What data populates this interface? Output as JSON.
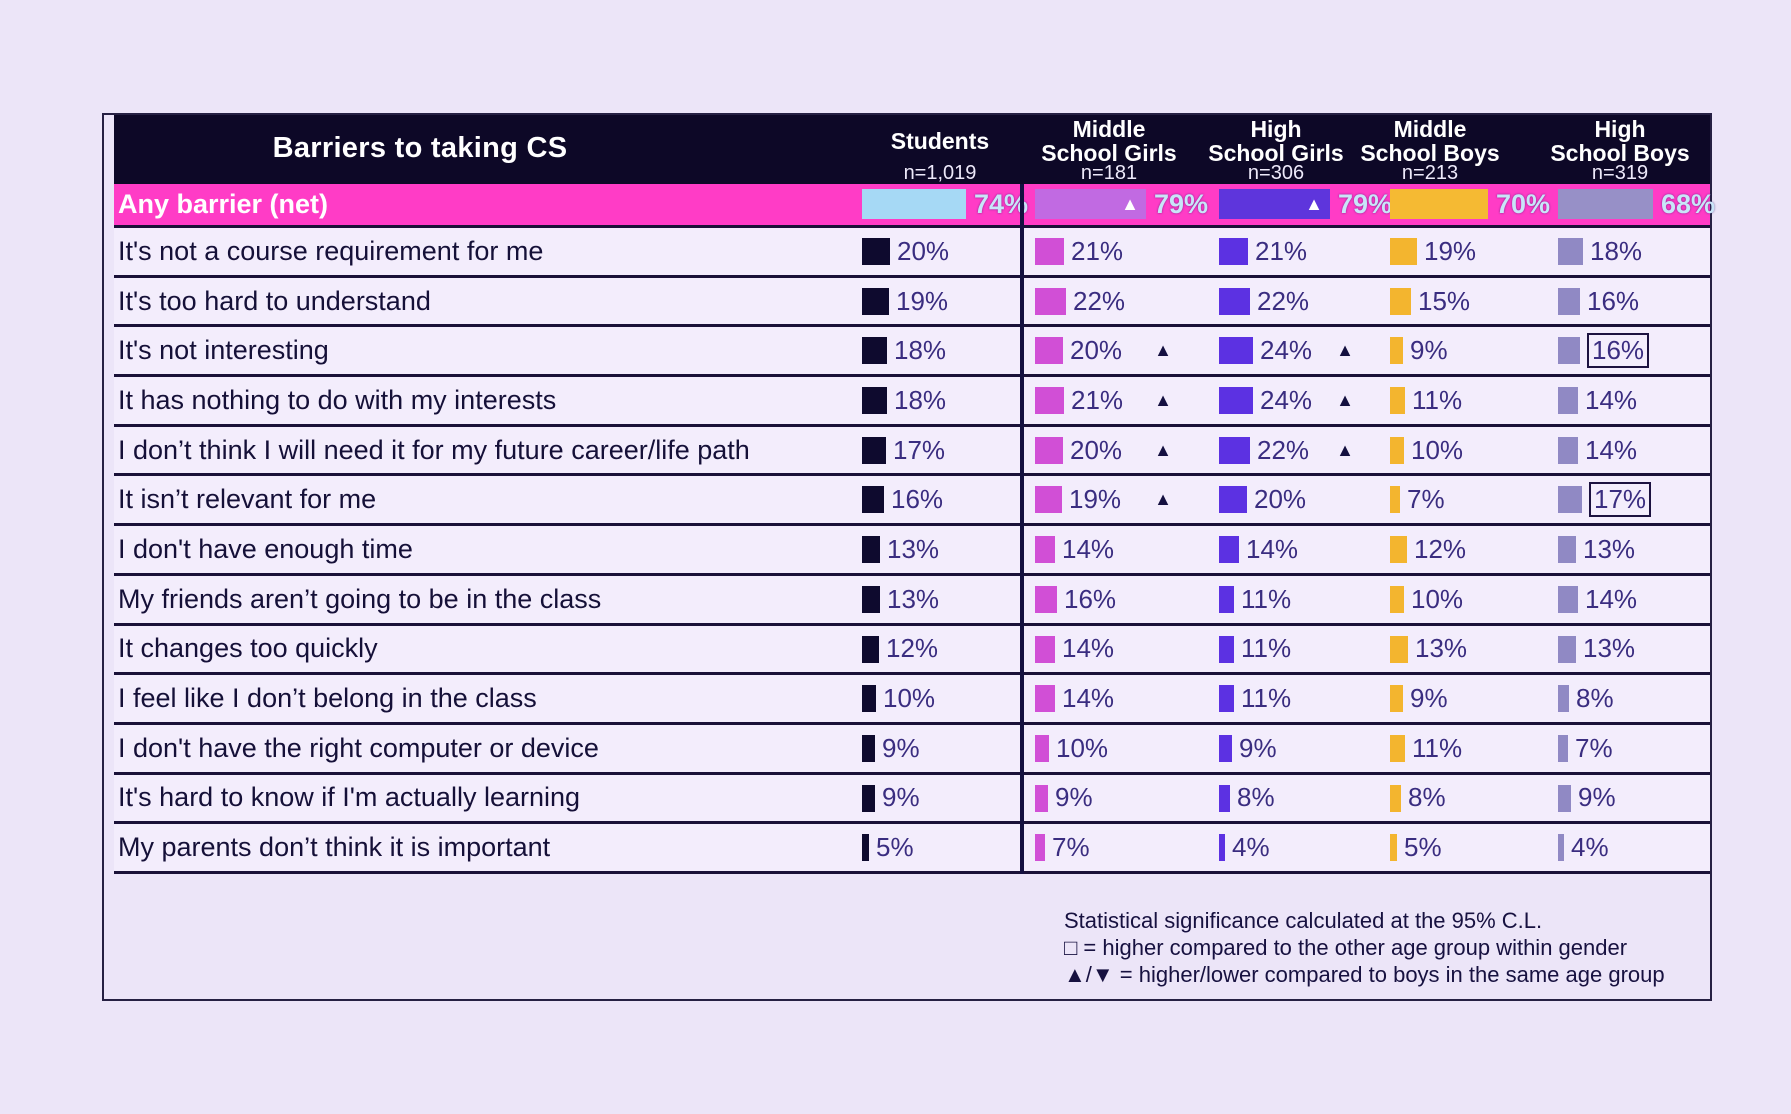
{
  "table": {
    "title": "Barriers to taking CS",
    "value_suffix": "%",
    "columns": [
      {
        "id": "students",
        "header_lines": [
          "Students"
        ],
        "n": "n=1,019",
        "bar_color": "#0e0a2e",
        "net_bar_color": "#a6d9f5"
      },
      {
        "id": "middle-school-girls",
        "header_lines": [
          "Middle",
          "School Girls"
        ],
        "n": "n=181",
        "bar_color": "#d14fd6",
        "net_bar_color": "#c16ae2"
      },
      {
        "id": "high-school-girls",
        "header_lines": [
          "High",
          "School Girls"
        ],
        "n": "n=306",
        "bar_color": "#5c31e2",
        "net_bar_color": "#5e35dc"
      },
      {
        "id": "middle-school-boys",
        "header_lines": [
          "Middle",
          "School Boys"
        ],
        "n": "n=213",
        "bar_color": "#f3b52f",
        "net_bar_color": "#f5ba33"
      },
      {
        "id": "high-school-boys",
        "header_lines": [
          "High",
          "School Boys"
        ],
        "n": "n=319",
        "bar_color": "#9089c4",
        "net_bar_color": "#9790c7"
      }
    ],
    "net_row": {
      "label": "Any barrier (net)",
      "bg": "#ff3cc6",
      "cells": [
        {
          "value": 74
        },
        {
          "value": 79,
          "triangle": "up"
        },
        {
          "value": 79,
          "triangle": "up"
        },
        {
          "value": 70
        },
        {
          "value": 68
        }
      ]
    },
    "rows": [
      {
        "label": "It's not a course requirement for me",
        "cells": [
          {
            "value": 20
          },
          {
            "value": 21
          },
          {
            "value": 21
          },
          {
            "value": 19
          },
          {
            "value": 18
          }
        ]
      },
      {
        "label": "It's too hard to understand",
        "cells": [
          {
            "value": 19
          },
          {
            "value": 22
          },
          {
            "value": 22
          },
          {
            "value": 15
          },
          {
            "value": 16
          }
        ]
      },
      {
        "label": "It's not interesting",
        "cells": [
          {
            "value": 18
          },
          {
            "value": 20,
            "triangle": "up"
          },
          {
            "value": 24,
            "triangle": "up"
          },
          {
            "value": 9
          },
          {
            "value": 16,
            "boxed": true
          }
        ]
      },
      {
        "label": "It has nothing to do with my interests",
        "cells": [
          {
            "value": 18
          },
          {
            "value": 21,
            "triangle": "up"
          },
          {
            "value": 24,
            "triangle": "up"
          },
          {
            "value": 11
          },
          {
            "value": 14
          }
        ]
      },
      {
        "label": "I don’t think I will need it for my future career/life path",
        "cells": [
          {
            "value": 17
          },
          {
            "value": 20,
            "triangle": "up"
          },
          {
            "value": 22,
            "triangle": "up"
          },
          {
            "value": 10
          },
          {
            "value": 14
          }
        ]
      },
      {
        "label": "It isn’t relevant for me",
        "cells": [
          {
            "value": 16
          },
          {
            "value": 19,
            "triangle": "up"
          },
          {
            "value": 20
          },
          {
            "value": 7
          },
          {
            "value": 17,
            "boxed": true
          }
        ]
      },
      {
        "label": "I don't have enough time",
        "cells": [
          {
            "value": 13
          },
          {
            "value": 14
          },
          {
            "value": 14
          },
          {
            "value": 12
          },
          {
            "value": 13
          }
        ]
      },
      {
        "label": "My friends aren’t going to be in the class",
        "cells": [
          {
            "value": 13
          },
          {
            "value": 16
          },
          {
            "value": 11
          },
          {
            "value": 10
          },
          {
            "value": 14
          }
        ]
      },
      {
        "label": "It changes too quickly",
        "cells": [
          {
            "value": 12
          },
          {
            "value": 14
          },
          {
            "value": 11
          },
          {
            "value": 13
          },
          {
            "value": 13
          }
        ]
      },
      {
        "label": "I feel like I don’t belong in the class",
        "cells": [
          {
            "value": 10
          },
          {
            "value": 14
          },
          {
            "value": 11
          },
          {
            "value": 9
          },
          {
            "value": 8
          }
        ]
      },
      {
        "label": "I don't have the right computer or device",
        "cells": [
          {
            "value": 9
          },
          {
            "value": 10
          },
          {
            "value": 9
          },
          {
            "value": 11
          },
          {
            "value": 7
          }
        ]
      },
      {
        "label": "It's hard to know if I'm actually learning",
        "cells": [
          {
            "value": 9
          },
          {
            "value": 9
          },
          {
            "value": 8
          },
          {
            "value": 8
          },
          {
            "value": 9
          }
        ]
      },
      {
        "label": "My parents don’t think it is important",
        "cells": [
          {
            "value": 5
          },
          {
            "value": 7
          },
          {
            "value": 4
          },
          {
            "value": 5
          },
          {
            "value": 4
          }
        ]
      }
    ]
  },
  "footnote": {
    "lines": [
      "Statistical significance calculated at the 95% C.L.",
      "□ = higher compared to the other age group within gender",
      "▲/▼ = higher/lower compared to boys in the same age group"
    ]
  },
  "chart_data": {
    "type": "bar",
    "title": "Barriers to taking CS",
    "value_unit": "percent",
    "categories": [
      "Any barrier (net)",
      "It's not a course requirement for me",
      "It's too hard to understand",
      "It's not interesting",
      "It has nothing to do with my interests",
      "I don’t think I will need it for my future career/life path",
      "It isn’t relevant for me",
      "I don't have enough time",
      "My friends aren’t going to be in the class",
      "It changes too quickly",
      "I feel like I don’t belong in the class",
      "I don't have the right computer or device",
      "It's hard to know if I'm actually learning",
      "My parents don’t think it is important"
    ],
    "series": [
      {
        "name": "Students",
        "n": 1019,
        "values": [
          74,
          20,
          19,
          18,
          18,
          17,
          16,
          13,
          13,
          12,
          10,
          9,
          9,
          5
        ]
      },
      {
        "name": "Middle School Girls",
        "n": 181,
        "values": [
          79,
          21,
          22,
          20,
          21,
          20,
          19,
          14,
          16,
          14,
          14,
          10,
          9,
          7
        ]
      },
      {
        "name": "High School Girls",
        "n": 306,
        "values": [
          79,
          21,
          22,
          24,
          24,
          22,
          20,
          14,
          11,
          11,
          11,
          9,
          8,
          4
        ]
      },
      {
        "name": "Middle School Boys",
        "n": 213,
        "values": [
          70,
          19,
          15,
          9,
          11,
          10,
          7,
          12,
          10,
          13,
          9,
          11,
          8,
          5
        ]
      },
      {
        "name": "High School Boys",
        "n": 319,
        "values": [
          68,
          18,
          16,
          16,
          14,
          14,
          17,
          13,
          14,
          13,
          8,
          7,
          9,
          4
        ]
      }
    ],
    "significance": {
      "confidence_level": "95% C.L.",
      "triangle_up_higher_than_boys_same_age": {
        "Middle School Girls": [
          "Any barrier (net)",
          "It's not interesting",
          "It has nothing to do with my interests",
          "I don’t think I will need it for my future career/life path",
          "It isn’t relevant for me"
        ],
        "High School Girls": [
          "Any barrier (net)",
          "It's not interesting",
          "It has nothing to do with my interests",
          "I don’t think I will need it for my future career/life path"
        ]
      },
      "box_higher_than_other_age_within_gender": {
        "High School Boys": [
          "It's not interesting",
          "It isn’t relevant for me"
        ]
      }
    }
  }
}
